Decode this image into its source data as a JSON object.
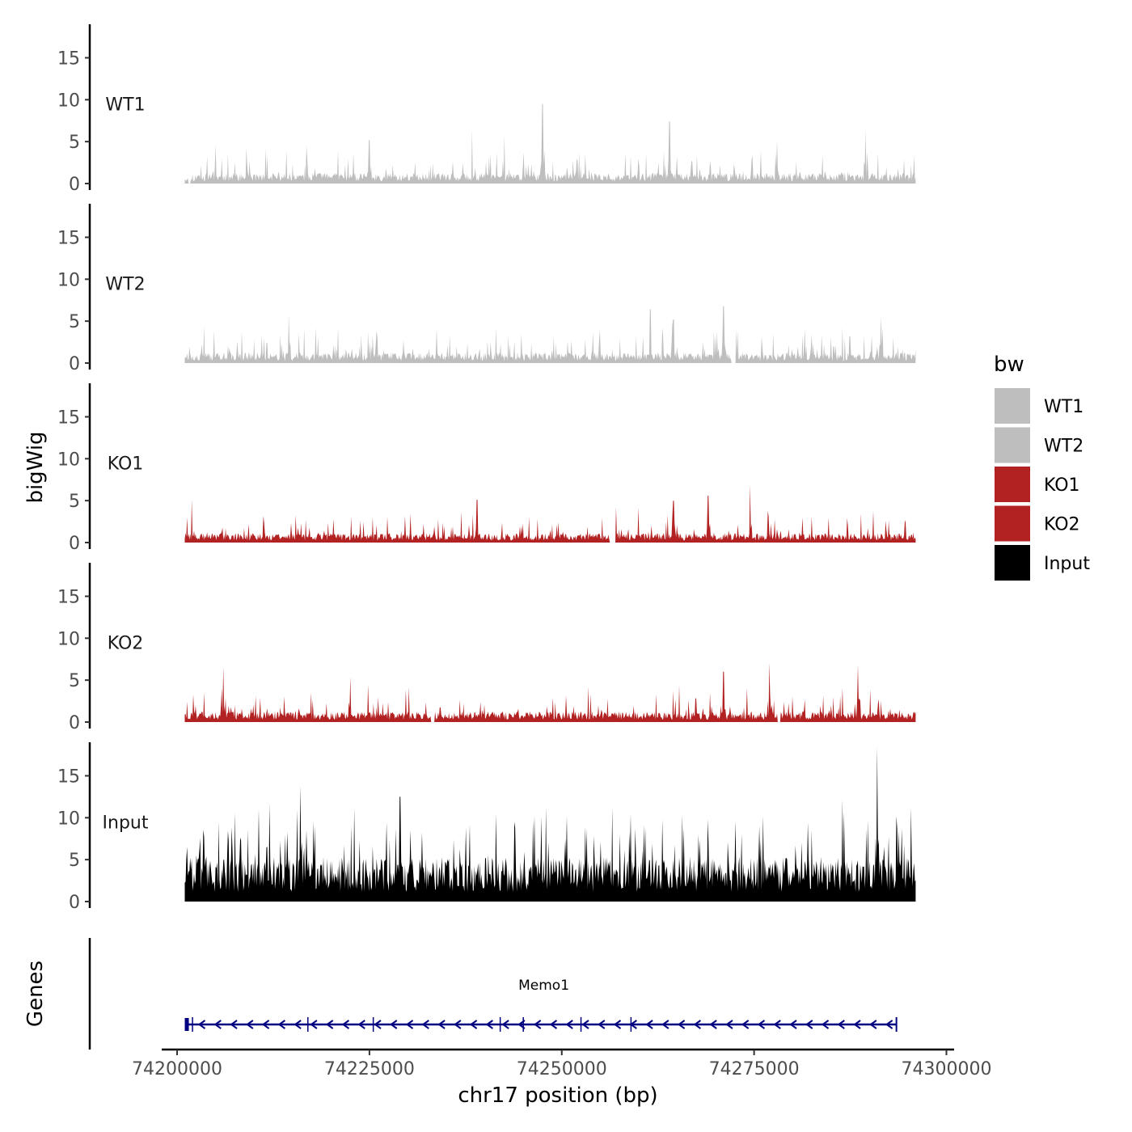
{
  "chart_data": {
    "type": "area",
    "title": "",
    "chromosome": "chr17",
    "xlabel": "chr17 position (bp)",
    "ylabel": "bigWig",
    "xlim": [
      74198000,
      74301000
    ],
    "data_range": [
      74201000,
      74296000
    ],
    "ylim": [
      0,
      19
    ],
    "y_ticks": [
      0,
      5,
      10,
      15
    ],
    "x_ticks": [
      74200000,
      74225000,
      74250000,
      74275000,
      74300000
    ],
    "x_tick_labels": [
      "74200000",
      "74225000",
      "74250000",
      "74275000",
      "74300000"
    ],
    "legend": {
      "title": "bw",
      "position": "right",
      "entries": [
        {
          "name": "WT1",
          "color": "#BEBEBE"
        },
        {
          "name": "WT2",
          "color": "#BEBEBE"
        },
        {
          "name": "KO1",
          "color": "#B22222"
        },
        {
          "name": "KO2",
          "color": "#B22222"
        },
        {
          "name": "Input",
          "color": "#000000"
        }
      ]
    },
    "series": [
      {
        "name": "WT1",
        "color": "#BEBEBE",
        "base_level": 0.9,
        "spread": 2.6,
        "spike_rate": 0.1,
        "seed": 11,
        "peaks": [
          {
            "x": 74205000,
            "y": 4.6
          },
          {
            "x": 74225000,
            "y": 5.2
          },
          {
            "x": 74247500,
            "y": 9.5
          },
          {
            "x": 74264000,
            "y": 7.4
          },
          {
            "x": 74289500,
            "y": 6.4
          },
          {
            "x": 74278000,
            "y": 5.1
          }
        ],
        "gaps": [
          [
            74201500,
            74201800
          ]
        ]
      },
      {
        "name": "WT2",
        "color": "#BEBEBE",
        "base_level": 0.9,
        "spread": 2.6,
        "spike_rate": 0.1,
        "seed": 23,
        "peaks": [
          {
            "x": 74214500,
            "y": 5.8
          },
          {
            "x": 74261500,
            "y": 6.4
          },
          {
            "x": 74264500,
            "y": 5.2
          },
          {
            "x": 74271000,
            "y": 6.8
          },
          {
            "x": 74291500,
            "y": 5.5
          }
        ],
        "gaps": [
          [
            74272000,
            74272600
          ]
        ]
      },
      {
        "name": "KO1",
        "color": "#B22222",
        "base_level": 0.8,
        "spread": 2.3,
        "spike_rate": 0.1,
        "seed": 37,
        "peaks": [
          {
            "x": 74239000,
            "y": 5.1
          },
          {
            "x": 74264500,
            "y": 5.0
          },
          {
            "x": 74269000,
            "y": 5.6
          },
          {
            "x": 74274500,
            "y": 6.9
          },
          {
            "x": 74257000,
            "y": 4.2
          }
        ],
        "gaps": [
          [
            74256200,
            74257000
          ]
        ]
      },
      {
        "name": "KO2",
        "color": "#B22222",
        "base_level": 0.9,
        "spread": 2.6,
        "spike_rate": 0.12,
        "seed": 53,
        "peaks": [
          {
            "x": 74206000,
            "y": 6.6
          },
          {
            "x": 74222500,
            "y": 5.4
          },
          {
            "x": 74271000,
            "y": 6.0
          },
          {
            "x": 74277000,
            "y": 7.1
          },
          {
            "x": 74288500,
            "y": 6.8
          }
        ],
        "gaps": [
          [
            74233000,
            74233500
          ],
          [
            74278000,
            74278400
          ]
        ]
      },
      {
        "name": "Input",
        "color": "#000000",
        "base_level": 3.8,
        "spread": 5.6,
        "spike_rate": 0.14,
        "seed": 71,
        "peaks": [
          {
            "x": 74216000,
            "y": 13.8
          },
          {
            "x": 74212000,
            "y": 11.7
          },
          {
            "x": 74229000,
            "y": 12.5
          },
          {
            "x": 74286500,
            "y": 12.2
          },
          {
            "x": 74291000,
            "y": 18.5
          },
          {
            "x": 74293500,
            "y": 10.2
          }
        ],
        "gaps": []
      }
    ],
    "genes": {
      "label": "Genes",
      "items": [
        {
          "name": "Memo1",
          "start": 74201000,
          "end": 74293500,
          "strand": "-",
          "color": "#000080",
          "exons": [
            74202000,
            74217000,
            74225500,
            74242000,
            74245000,
            74252500,
            74259000
          ]
        }
      ]
    }
  }
}
